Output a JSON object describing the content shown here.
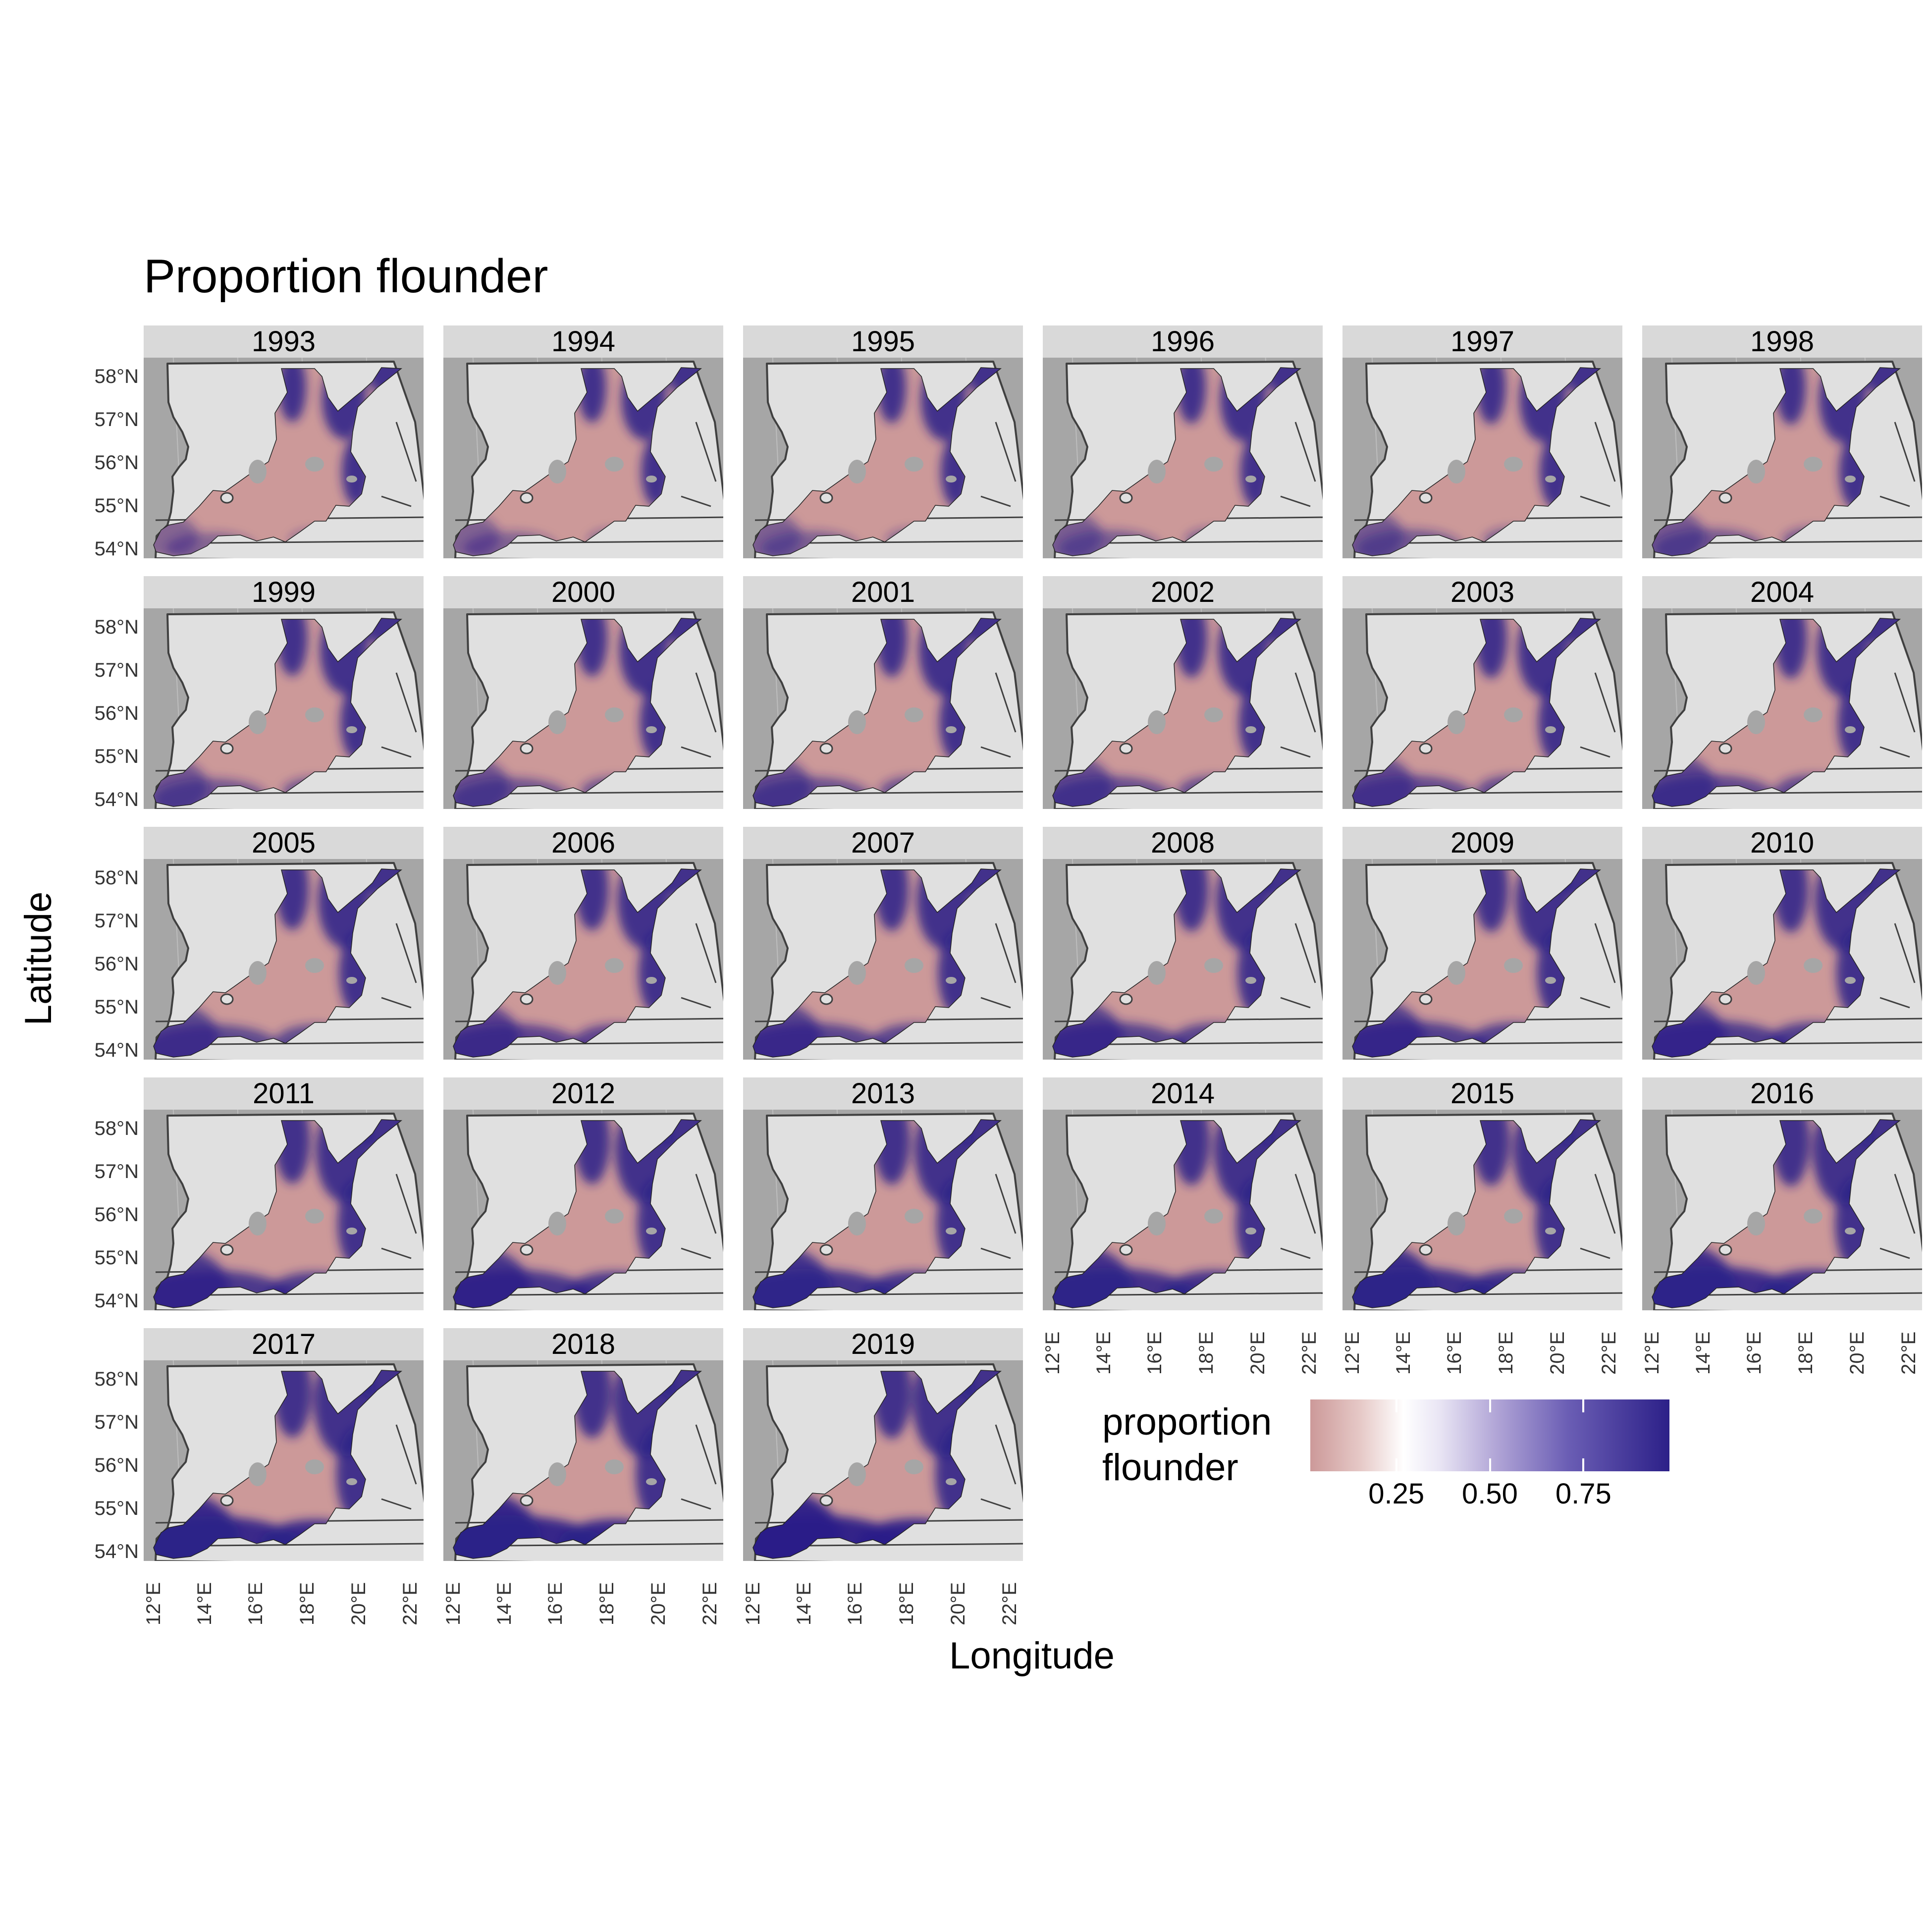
{
  "title": "Proportion flounder",
  "x_axis_label": "Longitude",
  "y_axis_label": "Latitude",
  "lat_ticks": [
    "58°N",
    "57°N",
    "56°N",
    "55°N",
    "54°N"
  ],
  "lon_ticks": [
    "12°E",
    "14°E",
    "16°E",
    "18°E",
    "20°E",
    "22°E"
  ],
  "legend": {
    "title_line1": "proportion",
    "title_line2": "flounder",
    "ticks": [
      "0.25",
      "0.50",
      "0.75"
    ],
    "tick_values": [
      0.25,
      0.5,
      0.75
    ],
    "low_color": "#cc9999",
    "mid_color": "#ffffff",
    "high_color": "#2c2088"
  },
  "colors": {
    "panel_background": "#a6a6a6",
    "land": "#e0e0e0",
    "strip_background": "#d9d9d9",
    "border": "#404040"
  },
  "years": [
    "1993",
    "1994",
    "1995",
    "1996",
    "1997",
    "1998",
    "1999",
    "2000",
    "2001",
    "2002",
    "2003",
    "2004",
    "2005",
    "2006",
    "2007",
    "2008",
    "2009",
    "2010",
    "2011",
    "2012",
    "2013",
    "2014",
    "2015",
    "2016",
    "2017",
    "2018",
    "2019"
  ]
}
